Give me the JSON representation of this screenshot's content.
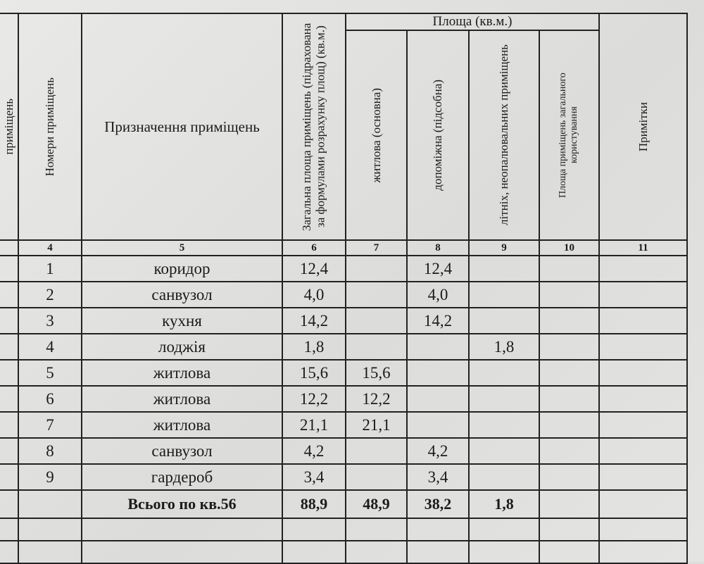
{
  "header": {
    "clipped_col": "приміщень",
    "room_numbers": "Номери приміщень",
    "room_purpose": "Призначення приміщень",
    "total_area": "Загальна площа приміщень (підрахована за формулами розрахунку площ) (кв.м.)",
    "area_group": "Площа (кв.м.)",
    "living": "житлова (основна)",
    "auxiliary": "допоміжна (підсобна)",
    "summer": "літніх, неопалювальних приміщень",
    "common": "Площа приміщень загального користування",
    "notes": "Примітки"
  },
  "column_numbers": [
    "4",
    "5",
    "6",
    "7",
    "8",
    "9",
    "10",
    "11"
  ],
  "rows": [
    {
      "n": "1",
      "purpose": "коридор",
      "total": "12,4",
      "living": "",
      "aux": "12,4",
      "summer": ""
    },
    {
      "n": "2",
      "purpose": "санвузол",
      "total": "4,0",
      "living": "",
      "aux": "4,0",
      "summer": ""
    },
    {
      "n": "3",
      "purpose": "кухня",
      "total": "14,2",
      "living": "",
      "aux": "14,2",
      "summer": ""
    },
    {
      "n": "4",
      "purpose": "лоджія",
      "total": "1,8",
      "living": "",
      "aux": "",
      "summer": "1,8"
    },
    {
      "n": "5",
      "purpose": "житлова",
      "total": "15,6",
      "living": "15,6",
      "aux": "",
      "summer": ""
    },
    {
      "n": "6",
      "purpose": "житлова",
      "total": "12,2",
      "living": "12,2",
      "aux": "",
      "summer": ""
    },
    {
      "n": "7",
      "purpose": "житлова",
      "total": "21,1",
      "living": "21,1",
      "aux": "",
      "summer": ""
    },
    {
      "n": "8",
      "purpose": "санвузол",
      "total": "4,2",
      "living": "",
      "aux": "4,2",
      "summer": ""
    },
    {
      "n": "9",
      "purpose": "гардероб",
      "total": "3,4",
      "living": "",
      "aux": "3,4",
      "summer": ""
    }
  ],
  "total": {
    "label": "Всього по кв.56",
    "total": "88,9",
    "living": "48,9",
    "aux": "38,2",
    "summer": "1,8"
  }
}
